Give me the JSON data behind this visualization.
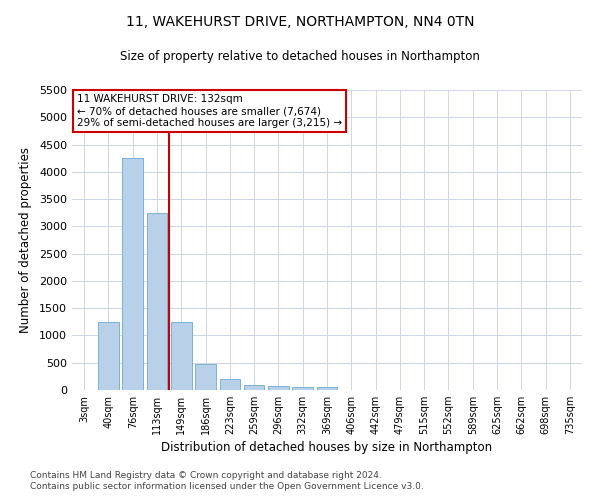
{
  "title_line1": "11, WAKEHURST DRIVE, NORTHAMPTON, NN4 0TN",
  "title_line2": "Size of property relative to detached houses in Northampton",
  "xlabel": "Distribution of detached houses by size in Northampton",
  "ylabel": "Number of detached properties",
  "categories": [
    "3sqm",
    "40sqm",
    "76sqm",
    "113sqm",
    "149sqm",
    "186sqm",
    "223sqm",
    "259sqm",
    "296sqm",
    "332sqm",
    "369sqm",
    "406sqm",
    "442sqm",
    "479sqm",
    "515sqm",
    "552sqm",
    "589sqm",
    "625sqm",
    "662sqm",
    "698sqm",
    "735sqm"
  ],
  "values": [
    0,
    1250,
    4250,
    3250,
    1250,
    475,
    200,
    100,
    75,
    60,
    55,
    0,
    0,
    0,
    0,
    0,
    0,
    0,
    0,
    0,
    0
  ],
  "bar_color": "#b8d0e8",
  "bar_edge_color": "#6aaad4",
  "vline_x": 3.5,
  "vline_color": "#cc0000",
  "ylim": [
    0,
    5500
  ],
  "yticks": [
    0,
    500,
    1000,
    1500,
    2000,
    2500,
    3000,
    3500,
    4000,
    4500,
    5000,
    5500
  ],
  "annotation_line1": "11 WAKEHURST DRIVE: 132sqm",
  "annotation_line2": "← 70% of detached houses are smaller (7,674)",
  "annotation_line3": "29% of semi-detached houses are larger (3,215) →",
  "annotation_box_color": "#ffffff",
  "annotation_box_edge": "#cc0000",
  "footer_line1": "Contains HM Land Registry data © Crown copyright and database right 2024.",
  "footer_line2": "Contains public sector information licensed under the Open Government Licence v3.0.",
  "bg_color": "#ffffff",
  "grid_color": "#ccd6e8"
}
